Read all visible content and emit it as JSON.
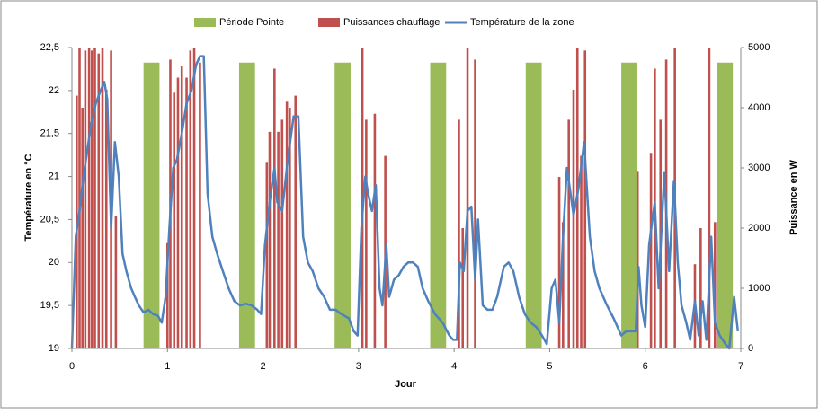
{
  "chart_data": {
    "type": "combo",
    "xlabel": "Jour",
    "ylabel": "Température en °C",
    "y2label": "Puissance en W",
    "xlim": [
      0,
      7
    ],
    "xticks": [
      0,
      1,
      2,
      3,
      4,
      5,
      6,
      7
    ],
    "ylim": [
      19,
      22.5
    ],
    "yticks": [
      {
        "value": 19,
        "label": "19"
      },
      {
        "value": 19.5,
        "label": "19,5"
      },
      {
        "value": 20,
        "label": "20"
      },
      {
        "value": 20.5,
        "label": "20,5"
      },
      {
        "value": 21,
        "label": "21"
      },
      {
        "value": 21.5,
        "label": "21,5"
      },
      {
        "value": 22,
        "label": "22"
      },
      {
        "value": 22.5,
        "label": "22,5"
      }
    ],
    "y2lim": [
      0,
      5000
    ],
    "y2ticks": [
      0,
      1000,
      2000,
      3000,
      4000,
      5000
    ],
    "legend": "top",
    "series": [
      {
        "name": "Période Pointe",
        "type": "bar",
        "axis": "y2",
        "color": "#9bbb59",
        "x": [
          0.833,
          1.833,
          2.833,
          3.833,
          4.833,
          5.833,
          6.833
        ],
        "values": [
          4750,
          4750,
          4750,
          4750,
          4750,
          4750,
          4750
        ]
      },
      {
        "name": "Puissances chauffage",
        "type": "bar",
        "axis": "y2",
        "color": "#c0504d",
        "x": [
          0.05,
          0.08,
          0.11,
          0.14,
          0.18,
          0.21,
          0.24,
          0.28,
          0.32,
          0.36,
          0.41,
          0.46,
          1.0,
          1.03,
          1.07,
          1.11,
          1.15,
          1.2,
          1.24,
          1.28,
          1.34,
          2.04,
          2.07,
          2.12,
          2.16,
          2.2,
          2.25,
          2.28,
          2.34,
          3.04,
          3.08,
          3.17,
          3.28,
          4.05,
          4.09,
          4.14,
          4.22,
          5.1,
          5.14,
          5.2,
          5.25,
          5.29,
          5.33,
          5.37,
          5.92,
          6.06,
          6.1,
          6.16,
          6.22,
          6.31,
          6.52,
          6.58,
          6.67,
          6.73
        ],
        "values": [
          4200,
          5000,
          4000,
          4950,
          5000,
          4950,
          5000,
          4900,
          5000,
          4300,
          4950,
          2200,
          1750,
          4800,
          4250,
          4500,
          4700,
          4500,
          4950,
          5000,
          4750,
          3100,
          3600,
          4650,
          3600,
          3800,
          4100,
          4000,
          4200,
          5000,
          3800,
          3900,
          3200,
          3800,
          2000,
          5000,
          4800,
          2850,
          2100,
          3800,
          4300,
          5000,
          3200,
          4950,
          2950,
          3250,
          4650,
          3800,
          4800,
          5000,
          1400,
          2000,
          5000,
          2100
        ]
      },
      {
        "name": "Température de la zone",
        "type": "line",
        "axis": "y",
        "color": "#4f81bd",
        "x": [
          0,
          0.04,
          0.08,
          0.12,
          0.16,
          0.2,
          0.25,
          0.3,
          0.34,
          0.37,
          0.41,
          0.45,
          0.49,
          0.53,
          0.57,
          0.62,
          0.66,
          0.7,
          0.75,
          0.8,
          0.85,
          0.9,
          0.94,
          0.98,
          1.02,
          1.06,
          1.1,
          1.15,
          1.2,
          1.25,
          1.3,
          1.34,
          1.38,
          1.42,
          1.47,
          1.52,
          1.58,
          1.64,
          1.7,
          1.76,
          1.82,
          1.88,
          1.94,
          1.98,
          2.02,
          2.07,
          2.12,
          2.15,
          2.2,
          2.26,
          2.32,
          2.37,
          2.42,
          2.47,
          2.52,
          2.58,
          2.64,
          2.7,
          2.76,
          2.82,
          2.9,
          2.95,
          2.99,
          3.03,
          3.07,
          3.1,
          3.14,
          3.18,
          3.22,
          3.25,
          3.29,
          3.32,
          3.37,
          3.42,
          3.47,
          3.52,
          3.57,
          3.62,
          3.67,
          3.73,
          3.8,
          3.88,
          3.95,
          3.99,
          4.03,
          4.06,
          4.1,
          4.14,
          4.18,
          4.22,
          4.25,
          4.3,
          4.35,
          4.4,
          4.45,
          4.52,
          4.57,
          4.62,
          4.68,
          4.74,
          4.8,
          4.86,
          4.92,
          4.97,
          5.02,
          5.06,
          5.1,
          5.14,
          5.18,
          5.25,
          5.3,
          5.36,
          5.42,
          5.47,
          5.52,
          5.6,
          5.67,
          5.75,
          5.8,
          5.9,
          5.93,
          5.96,
          6.0,
          6.04,
          6.1,
          6.14,
          6.2,
          6.25,
          6.3,
          6.34,
          6.38,
          6.43,
          6.47,
          6.52,
          6.56,
          6.6,
          6.64,
          6.69,
          6.73,
          6.78,
          6.84,
          6.88,
          6.93,
          6.97
        ],
        "values": [
          19.0,
          20.3,
          20.6,
          21.0,
          21.3,
          21.6,
          21.85,
          22.0,
          22.1,
          21.9,
          20.4,
          21.4,
          21.0,
          20.1,
          19.9,
          19.7,
          19.6,
          19.5,
          19.42,
          19.45,
          19.4,
          19.38,
          19.3,
          19.6,
          20.4,
          21.1,
          21.2,
          21.5,
          21.85,
          22.0,
          22.3,
          22.4,
          22.4,
          20.8,
          20.3,
          20.1,
          19.9,
          19.7,
          19.55,
          19.5,
          19.52,
          19.5,
          19.45,
          19.4,
          20.2,
          20.7,
          21.1,
          20.7,
          20.6,
          21.2,
          21.7,
          21.7,
          20.3,
          20.0,
          19.9,
          19.7,
          19.6,
          19.45,
          19.45,
          19.4,
          19.35,
          19.2,
          19.15,
          20.4,
          21.0,
          20.8,
          20.6,
          20.9,
          19.7,
          19.5,
          20.2,
          19.6,
          19.8,
          19.85,
          19.95,
          20.0,
          20.0,
          19.95,
          19.7,
          19.55,
          19.4,
          19.3,
          19.15,
          19.1,
          19.1,
          20.0,
          19.9,
          20.6,
          20.65,
          19.8,
          20.5,
          19.5,
          19.45,
          19.45,
          19.6,
          19.95,
          20.0,
          19.9,
          19.6,
          19.4,
          19.3,
          19.25,
          19.15,
          19.05,
          19.7,
          19.8,
          19.3,
          20.3,
          21.1,
          20.55,
          20.85,
          21.4,
          20.3,
          19.9,
          19.7,
          19.5,
          19.35,
          19.15,
          19.2,
          19.2,
          19.95,
          19.5,
          19.25,
          20.2,
          20.7,
          19.7,
          21.05,
          19.9,
          20.95,
          20.0,
          19.5,
          19.3,
          19.1,
          19.55,
          19.15,
          19.55,
          19.1,
          20.3,
          19.3,
          19.15,
          19.05,
          19.0,
          19.6,
          19.2
        ]
      }
    ]
  }
}
